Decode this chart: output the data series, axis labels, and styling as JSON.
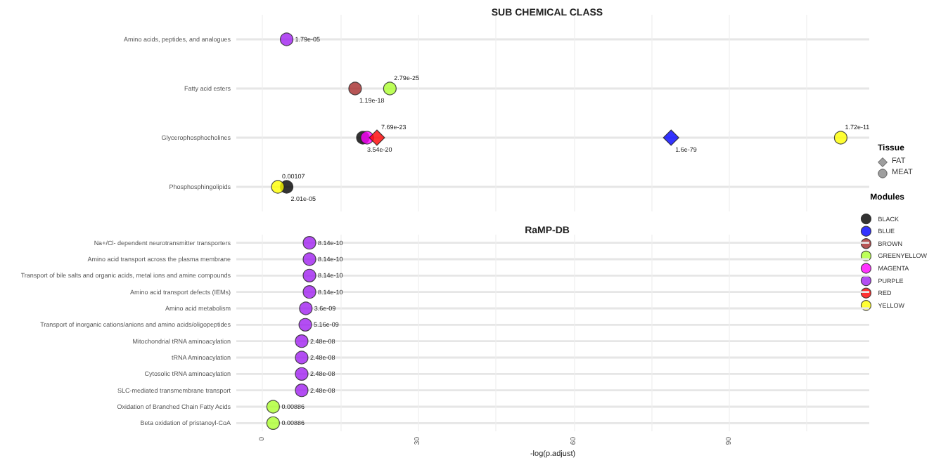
{
  "chart_data": [
    {
      "type": "scatter",
      "title": "SUB CHEMICAL CLASS",
      "categories": [
        "Amino acids, peptides, and analogues",
        "Fatty acid esters",
        "Glycerophosphocholines",
        "Phosphosphingolipids"
      ],
      "orientation": "horizontal",
      "xlim": [
        -5,
        117
      ],
      "xticks": [
        0,
        {
          "value": 15,
          "label": null
        },
        30,
        {
          "value": 45,
          "label": null
        },
        60,
        {
          "value": 75,
          "label": null
        },
        90,
        {
          "value": 105,
          "label": null
        }
      ],
      "tick_labels": "y",
      "grid": true,
      "legend": "right",
      "legend_title": "Modules",
      "annotations": [
        "Tissue",
        "FAT",
        "MEAT",
        {
          "text": "1.79e-05",
          "x": 4.7,
          "y": "Amino acids, peptides, and analogues"
        },
        {
          "text": "1.19e-18",
          "x": 17.9,
          "y": "Fatty acid esters"
        },
        {
          "text": "2.79e-25",
          "x": 24.6,
          "y": "Fatty acid esters"
        },
        {
          "text": "3.54e-20",
          "x": 19.4,
          "y": "Glycerophosphocholines"
        },
        {
          "text": "7.69e-23",
          "x": 22.1,
          "y": "Glycerophosphocholines"
        },
        {
          "text": "1.6e-79",
          "x": 78.8,
          "y": "Glycerophosphocholines"
        },
        {
          "text": "1.72e-11",
          "x": 111.5,
          "y": "Glycerophosphocholines"
        },
        {
          "text": "2.01e-05",
          "x": 4.7,
          "y": "Phosphosphingolipids"
        },
        {
          "text": "0.00107",
          "x": 3.0,
          "y": "Phosphosphingolipids"
        }
      ],
      "series": [
        {
          "name": "BLACK",
          "color": "#000000",
          "marker": "circle",
          "values": [
            null,
            null,
            19.4,
            4.7
          ]
        },
        {
          "name": "BLUE",
          "color": "#0000ff",
          "marker": "diamond",
          "values": [
            null,
            null,
            78.8,
            null
          ]
        },
        {
          "name": "BROWN",
          "color": "#a52a2a",
          "marker": "circle",
          "values": [
            null,
            17.9,
            null,
            null
          ]
        },
        {
          "name": "GREENYELLOW",
          "color": "#adff2f",
          "marker": "circle",
          "values": [
            null,
            24.6,
            null,
            null
          ]
        },
        {
          "name": "MAGENTA",
          "color": "#ff00ff",
          "marker": "circle",
          "values": [
            null,
            null,
            20.2,
            null
          ]
        },
        {
          "name": "PURPLE",
          "color": "#a020f0",
          "marker": "circle",
          "values": [
            4.7,
            null,
            null,
            null
          ]
        },
        {
          "name": "RED",
          "color": "#ff0000",
          "marker": "diamond",
          "values": [
            null,
            null,
            22.1,
            null
          ]
        },
        {
          "name": "YELLOW",
          "color": "#ffff00",
          "marker": "circle",
          "values": [
            null,
            null,
            111.5,
            3.0
          ]
        }
      ]
    },
    {
      "type": "scatter",
      "title": "RaMP-DB",
      "xlabel": "-log(p.adjust)",
      "categories": [
        "Na+/Cl- dependent neurotransmitter transporters",
        "Amino acid transport across the plasma membrane",
        "Transport of bile salts and organic acids, metal ions and amine compounds",
        "Amino acid transport defects (IEMs)",
        "Amino acid metabolism",
        "Transport of inorganic cations/anions and amino acids/oligopeptides",
        "Mitochondrial tRNA aminoacylation",
        "tRNA Aminoacylation",
        "Cytosolic tRNA aminoacylation",
        "SLC-mediated transmembrane transport",
        "Oxidation of Branched Chain Fatty Acids",
        "Beta oxidation of pristanoyl-CoA"
      ],
      "orientation": "horizontal",
      "xlim": [
        -5,
        117
      ],
      "xticks": [
        0,
        {
          "value": 15,
          "label": null
        },
        30,
        {
          "value": 45,
          "label": null
        },
        60,
        {
          "value": 75,
          "label": null
        },
        90,
        {
          "value": 105,
          "label": null
        }
      ],
      "grid": true,
      "annotations": [
        {
          "text": "8.14e-10",
          "x": 9.1,
          "y": "Na+/Cl- dependent neurotransmitter transporters"
        },
        {
          "text": "8.14e-10",
          "x": 9.1,
          "y": "Amino acid transport across the plasma membrane"
        },
        {
          "text": "8.14e-10",
          "x": 9.1,
          "y": "Transport of bile salts and organic acids, metal ions and amine compounds"
        },
        {
          "text": "8.14e-10",
          "x": 9.1,
          "y": "Amino acid transport defects (IEMs)"
        },
        {
          "text": "3.6e-09",
          "x": 8.4,
          "y": "Amino acid metabolism"
        },
        {
          "text": "5.16e-09",
          "x": 8.3,
          "y": "Transport of inorganic cations/anions and amino acids/oligopeptides"
        },
        {
          "text": "2.48e-08",
          "x": 7.6,
          "y": "Mitochondrial tRNA aminoacylation"
        },
        {
          "text": "2.48e-08",
          "x": 7.6,
          "y": "tRNA Aminoacylation"
        },
        {
          "text": "2.48e-08",
          "x": 7.6,
          "y": "Cytosolic tRNA aminoacylation"
        },
        {
          "text": "2.48e-08",
          "x": 7.6,
          "y": "SLC-mediated transmembrane transport"
        },
        {
          "text": "0.00886",
          "x": 2.1,
          "y": "Oxidation of Branched Chain Fatty Acids"
        },
        {
          "text": "0.00886",
          "x": 2.1,
          "y": "Beta oxidation of pristanoyl-CoA"
        }
      ],
      "series": [
        {
          "color": "#a020f0",
          "marker": "circle",
          "values": [
            9.1,
            9.1,
            9.1,
            9.1,
            8.4,
            8.3,
            7.6,
            7.6,
            7.6,
            7.6,
            null,
            null
          ]
        },
        {
          "color": "#adff2f",
          "marker": "circle",
          "values": [
            null,
            null,
            null,
            null,
            null,
            null,
            null,
            null,
            null,
            null,
            2.1,
            2.1
          ]
        }
      ]
    }
  ]
}
